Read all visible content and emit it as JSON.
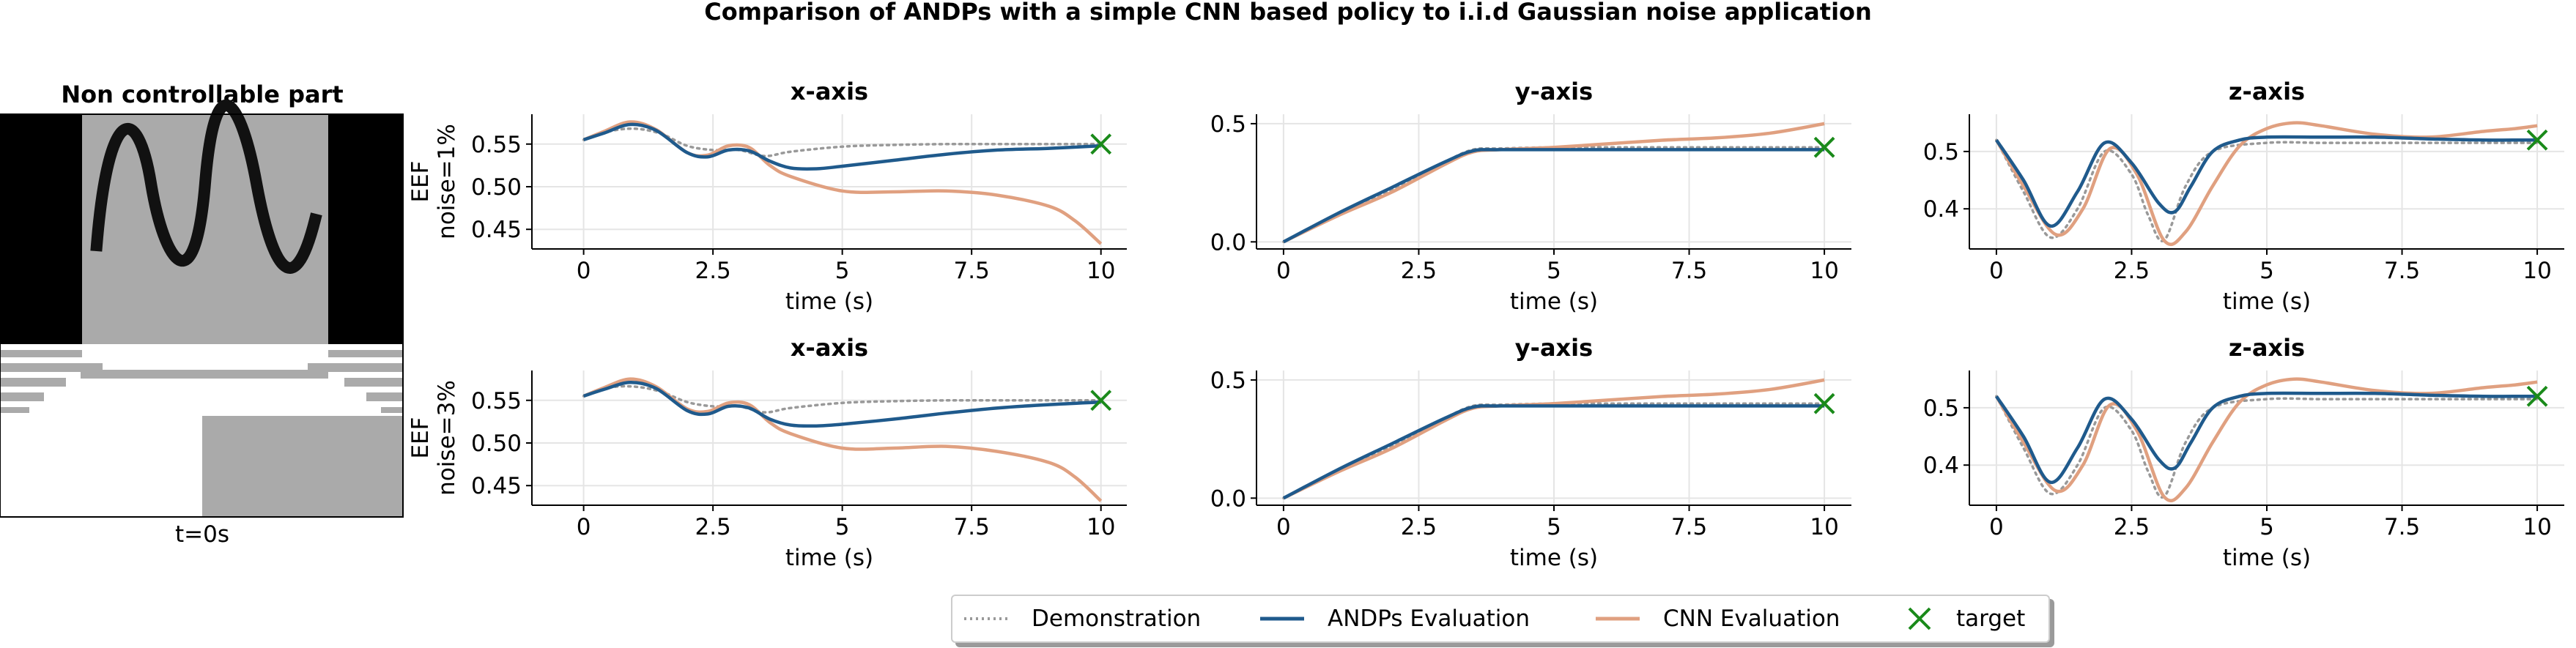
{
  "figure": {
    "title": "Comparison of ANDPs with a simple CNN based policy to i.i.d Gaussian noise application"
  },
  "image_panel": {
    "title": "Non controllable part",
    "caption": "t=0s"
  },
  "legend": {
    "items": [
      {
        "label": "Demonstration",
        "style": "dotted",
        "color": "#999999"
      },
      {
        "label": "ANDPs Evaluation",
        "style": "solid",
        "color": "#1f5a8c"
      },
      {
        "label": "CNN Evaluation",
        "style": "solid",
        "color": "#e0a080"
      },
      {
        "label": "target",
        "style": "x-marker",
        "color": "#1a8a1a"
      }
    ]
  },
  "chart_data": [
    {
      "type": "line",
      "title": "x-axis",
      "ylabel": "EEF\nnoise=1%",
      "xlabel": "time (s)",
      "xlim": [
        -1.0,
        10.5
      ],
      "ylim": [
        0.427,
        0.585
      ],
      "xticks": [
        0,
        2.5,
        5,
        7.5,
        10
      ],
      "xtick_labels": [
        "0",
        "2.5",
        "5",
        "7.5",
        "10"
      ],
      "yticks": [
        0.45,
        0.5,
        0.55
      ],
      "ytick_labels": [
        "0.45",
        "0.50",
        "0.55"
      ],
      "grid": true,
      "target": [
        10,
        0.55
      ],
      "series": [
        {
          "name": "Demonstration",
          "x": [
            0,
            0.5,
            1,
            1.5,
            2,
            2.5,
            3,
            3.5,
            4,
            5,
            6,
            7,
            8,
            9,
            10
          ],
          "y": [
            0.555,
            0.565,
            0.568,
            0.562,
            0.548,
            0.543,
            0.543,
            0.536,
            0.541,
            0.547,
            0.549,
            0.55,
            0.55,
            0.55,
            0.55
          ]
        },
        {
          "name": "ANDPs Evaluation",
          "x": [
            0,
            0.4,
            0.9,
            1.4,
            2,
            2.4,
            2.8,
            3.2,
            3.6,
            4,
            4.5,
            5,
            6,
            7,
            8,
            9,
            10
          ],
          "y": [
            0.555,
            0.563,
            0.573,
            0.566,
            0.54,
            0.535,
            0.543,
            0.542,
            0.53,
            0.522,
            0.521,
            0.524,
            0.531,
            0.538,
            0.543,
            0.545,
            0.548
          ]
        },
        {
          "name": "CNN Evaluation",
          "x": [
            0,
            0.4,
            0.9,
            1.4,
            2,
            2.4,
            2.8,
            3.2,
            3.6,
            4,
            5,
            6,
            7,
            8,
            9,
            9.5,
            10
          ],
          "y": [
            0.555,
            0.565,
            0.576,
            0.567,
            0.54,
            0.537,
            0.548,
            0.546,
            0.525,
            0.512,
            0.495,
            0.494,
            0.495,
            0.49,
            0.477,
            0.46,
            0.433
          ]
        }
      ]
    },
    {
      "type": "line",
      "title": "y-axis",
      "ylabel": "",
      "xlabel": "time (s)",
      "xlim": [
        -0.5,
        10.5
      ],
      "ylim": [
        -0.03,
        0.54
      ],
      "xticks": [
        0,
        2.5,
        5,
        7.5,
        10
      ],
      "xtick_labels": [
        "0",
        "2.5",
        "5",
        "7.5",
        "10"
      ],
      "yticks": [
        0.0,
        0.5
      ],
      "ytick_labels": [
        "0.0",
        "0.5"
      ],
      "grid": true,
      "target": [
        10,
        0.4
      ],
      "series": [
        {
          "name": "Demonstration",
          "x": [
            0,
            1,
            2,
            3,
            3.5,
            4,
            5,
            6,
            7,
            8,
            9,
            10
          ],
          "y": [
            0.0,
            0.11,
            0.22,
            0.34,
            0.39,
            0.395,
            0.4,
            0.4,
            0.4,
            0.4,
            0.4,
            0.4
          ]
        },
        {
          "name": "ANDPs Evaluation",
          "x": [
            0,
            1,
            2,
            3,
            3.5,
            4,
            5,
            6,
            7,
            8,
            9,
            10
          ],
          "y": [
            0.0,
            0.12,
            0.23,
            0.34,
            0.385,
            0.39,
            0.39,
            0.39,
            0.39,
            0.39,
            0.39,
            0.39
          ]
        },
        {
          "name": "CNN Evaluation",
          "x": [
            0,
            1,
            2,
            3,
            3.5,
            4,
            5,
            6,
            7,
            8,
            9,
            10
          ],
          "y": [
            0.0,
            0.11,
            0.21,
            0.33,
            0.38,
            0.39,
            0.4,
            0.415,
            0.43,
            0.44,
            0.46,
            0.5
          ]
        }
      ]
    },
    {
      "type": "line",
      "title": "z-axis",
      "ylabel": "",
      "xlabel": "time (s)",
      "xlim": [
        -0.5,
        10.5
      ],
      "ylim": [
        0.33,
        0.565
      ],
      "xticks": [
        0,
        2.5,
        5,
        7.5,
        10
      ],
      "xtick_labels": [
        "0",
        "2.5",
        "5",
        "7.5",
        "10"
      ],
      "yticks": [
        0.4,
        0.5
      ],
      "ytick_labels": [
        "0.4",
        "0.5"
      ],
      "grid": true,
      "target": [
        10,
        0.52
      ],
      "series": [
        {
          "name": "Demonstration",
          "x": [
            0,
            0.5,
            1,
            1.5,
            2,
            2.5,
            2.8,
            3.1,
            3.5,
            4,
            5,
            6,
            7,
            8,
            9,
            10
          ],
          "y": [
            0.52,
            0.43,
            0.35,
            0.4,
            0.5,
            0.46,
            0.39,
            0.345,
            0.44,
            0.5,
            0.515,
            0.515,
            0.515,
            0.515,
            0.515,
            0.515
          ]
        },
        {
          "name": "ANDPs Evaluation",
          "x": [
            0,
            0.5,
            1,
            1.5,
            2,
            2.5,
            3,
            3.3,
            3.6,
            4,
            4.5,
            5,
            6,
            7,
            8,
            9,
            10
          ],
          "y": [
            0.52,
            0.45,
            0.37,
            0.43,
            0.515,
            0.48,
            0.41,
            0.395,
            0.44,
            0.5,
            0.52,
            0.525,
            0.525,
            0.525,
            0.522,
            0.52,
            0.52
          ]
        },
        {
          "name": "CNN Evaluation",
          "x": [
            0,
            0.5,
            1.1,
            1.6,
            2.1,
            2.6,
            3.1,
            3.5,
            4,
            4.5,
            5,
            5.5,
            6,
            7,
            8,
            9,
            9.6,
            10
          ],
          "y": [
            0.52,
            0.44,
            0.355,
            0.4,
            0.505,
            0.46,
            0.345,
            0.36,
            0.44,
            0.51,
            0.54,
            0.55,
            0.545,
            0.53,
            0.525,
            0.535,
            0.54,
            0.545
          ]
        }
      ]
    },
    {
      "type": "line",
      "title": "x-axis",
      "ylabel": "EEF\nnoise=3%",
      "xlabel": "time (s)",
      "xlim": [
        -1.0,
        10.5
      ],
      "ylim": [
        0.427,
        0.585
      ],
      "xticks": [
        0,
        2.5,
        5,
        7.5,
        10
      ],
      "xtick_labels": [
        "0",
        "2.5",
        "5",
        "7.5",
        "10"
      ],
      "yticks": [
        0.45,
        0.5,
        0.55
      ],
      "ytick_labels": [
        "0.45",
        "0.50",
        "0.55"
      ],
      "grid": true,
      "target": [
        10,
        0.55
      ],
      "series": [
        {
          "name": "Demonstration",
          "x": [
            0,
            0.5,
            1,
            1.5,
            2,
            2.5,
            3,
            3.5,
            4,
            5,
            6,
            7,
            8,
            9,
            10
          ],
          "y": [
            0.555,
            0.565,
            0.566,
            0.56,
            0.548,
            0.543,
            0.543,
            0.536,
            0.541,
            0.547,
            0.549,
            0.55,
            0.55,
            0.55,
            0.55
          ]
        },
        {
          "name": "ANDPs Evaluation",
          "x": [
            0,
            0.4,
            0.9,
            1.4,
            2,
            2.4,
            2.8,
            3.2,
            3.6,
            4,
            4.5,
            5,
            6,
            7,
            8,
            9,
            10
          ],
          "y": [
            0.555,
            0.563,
            0.571,
            0.564,
            0.538,
            0.534,
            0.543,
            0.541,
            0.528,
            0.521,
            0.52,
            0.522,
            0.528,
            0.535,
            0.541,
            0.545,
            0.548
          ]
        },
        {
          "name": "CNN Evaluation",
          "x": [
            0,
            0.4,
            0.9,
            1.4,
            2,
            2.4,
            2.8,
            3.2,
            3.6,
            4,
            5,
            6,
            7,
            8,
            9,
            9.5,
            10
          ],
          "y": [
            0.555,
            0.565,
            0.575,
            0.566,
            0.54,
            0.537,
            0.547,
            0.545,
            0.524,
            0.511,
            0.494,
            0.494,
            0.496,
            0.49,
            0.477,
            0.46,
            0.432
          ]
        }
      ]
    },
    {
      "type": "line",
      "title": "y-axis",
      "ylabel": "",
      "xlabel": "time (s)",
      "xlim": [
        -0.5,
        10.5
      ],
      "ylim": [
        -0.03,
        0.54
      ],
      "xticks": [
        0,
        2.5,
        5,
        7.5,
        10
      ],
      "xtick_labels": [
        "0",
        "2.5",
        "5",
        "7.5",
        "10"
      ],
      "yticks": [
        0.0,
        0.5
      ],
      "ytick_labels": [
        "0.0",
        "0.5"
      ],
      "grid": true,
      "target": [
        10,
        0.4
      ],
      "series": [
        {
          "name": "Demonstration",
          "x": [
            0,
            1,
            2,
            3,
            3.5,
            4,
            5,
            6,
            7,
            8,
            9,
            10
          ],
          "y": [
            0.0,
            0.11,
            0.22,
            0.34,
            0.39,
            0.395,
            0.4,
            0.4,
            0.4,
            0.4,
            0.4,
            0.4
          ]
        },
        {
          "name": "ANDPs Evaluation",
          "x": [
            0,
            1,
            2,
            3,
            3.5,
            4,
            5,
            6,
            7,
            8,
            9,
            10
          ],
          "y": [
            0.0,
            0.12,
            0.23,
            0.34,
            0.385,
            0.39,
            0.39,
            0.39,
            0.39,
            0.39,
            0.39,
            0.39
          ]
        },
        {
          "name": "CNN Evaluation",
          "x": [
            0,
            1,
            2,
            3,
            3.5,
            4,
            5,
            6,
            7,
            8,
            9,
            10
          ],
          "y": [
            0.0,
            0.11,
            0.21,
            0.33,
            0.38,
            0.39,
            0.4,
            0.415,
            0.43,
            0.44,
            0.46,
            0.5
          ]
        }
      ]
    },
    {
      "type": "line",
      "title": "z-axis",
      "ylabel": "",
      "xlabel": "time (s)",
      "xlim": [
        -0.5,
        10.5
      ],
      "ylim": [
        0.33,
        0.565
      ],
      "xticks": [
        0,
        2.5,
        5,
        7.5,
        10
      ],
      "xtick_labels": [
        "0",
        "2.5",
        "5",
        "7.5",
        "10"
      ],
      "yticks": [
        0.4,
        0.5
      ],
      "ytick_labels": [
        "0.4",
        "0.5"
      ],
      "grid": true,
      "target": [
        10,
        0.52
      ],
      "series": [
        {
          "name": "Demonstration",
          "x": [
            0,
            0.5,
            1,
            1.5,
            2,
            2.5,
            2.8,
            3.1,
            3.5,
            4,
            5,
            6,
            7,
            8,
            9,
            10
          ],
          "y": [
            0.52,
            0.43,
            0.35,
            0.4,
            0.5,
            0.46,
            0.39,
            0.345,
            0.44,
            0.5,
            0.515,
            0.515,
            0.515,
            0.515,
            0.515,
            0.515
          ]
        },
        {
          "name": "ANDPs Evaluation",
          "x": [
            0,
            0.5,
            1,
            1.5,
            2,
            2.5,
            3,
            3.3,
            3.6,
            4,
            4.5,
            5,
            6,
            7,
            8,
            9,
            10
          ],
          "y": [
            0.52,
            0.45,
            0.37,
            0.43,
            0.515,
            0.48,
            0.41,
            0.395,
            0.44,
            0.5,
            0.52,
            0.525,
            0.525,
            0.525,
            0.522,
            0.52,
            0.52
          ]
        },
        {
          "name": "CNN Evaluation",
          "x": [
            0,
            0.5,
            1.1,
            1.6,
            2.1,
            2.6,
            3.1,
            3.5,
            4,
            4.5,
            5,
            5.5,
            6,
            7,
            8,
            9,
            9.6,
            10
          ],
          "y": [
            0.52,
            0.44,
            0.355,
            0.4,
            0.505,
            0.46,
            0.345,
            0.36,
            0.44,
            0.51,
            0.54,
            0.55,
            0.545,
            0.53,
            0.525,
            0.535,
            0.54,
            0.545
          ]
        }
      ]
    }
  ]
}
